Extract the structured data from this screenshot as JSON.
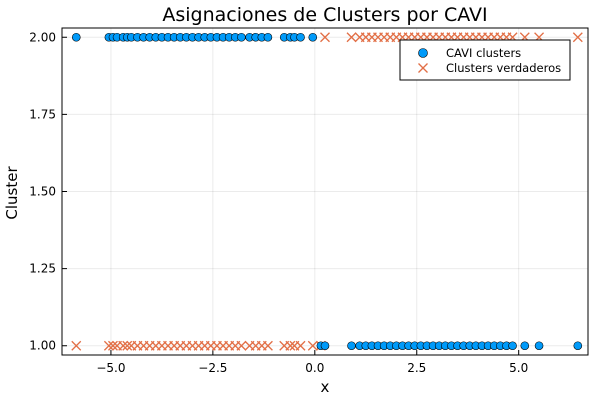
{
  "chart_data": {
    "type": "scatter",
    "title": "Asignaciones de Clusters por CAVI",
    "xlabel": "x",
    "ylabel": "Cluster",
    "xlim": [
      -6.2,
      6.7
    ],
    "ylim": [
      0.97,
      2.03
    ],
    "xticks": [
      -5.0,
      -2.5,
      0.0,
      2.5,
      5.0
    ],
    "xtick_labels": [
      "−5.0",
      "−2.5",
      "0.0",
      "2.5",
      "5.0"
    ],
    "yticks": [
      1.0,
      1.25,
      1.5,
      1.75,
      2.0
    ],
    "ytick_labels": [
      "1.00",
      "1.25",
      "1.50",
      "1.75",
      "2.00"
    ],
    "grid": true,
    "legend_position": "top-right",
    "colors": {
      "cavi": "#009AF9",
      "true": "#E26F46"
    },
    "series": [
      {
        "name": "CAVI clusters",
        "marker": "circle",
        "points": [
          {
            "x": -5.85,
            "y": 2
          },
          {
            "x": -5.05,
            "y": 2
          },
          {
            "x": -4.95,
            "y": 2
          },
          {
            "x": -4.85,
            "y": 2
          },
          {
            "x": -4.7,
            "y": 2
          },
          {
            "x": -4.6,
            "y": 2
          },
          {
            "x": -4.5,
            "y": 2
          },
          {
            "x": -4.35,
            "y": 2
          },
          {
            "x": -4.2,
            "y": 2
          },
          {
            "x": -4.05,
            "y": 2
          },
          {
            "x": -3.9,
            "y": 2
          },
          {
            "x": -3.75,
            "y": 2
          },
          {
            "x": -3.6,
            "y": 2
          },
          {
            "x": -3.45,
            "y": 2
          },
          {
            "x": -3.3,
            "y": 2
          },
          {
            "x": -3.15,
            "y": 2
          },
          {
            "x": -3.0,
            "y": 2
          },
          {
            "x": -2.85,
            "y": 2
          },
          {
            "x": -2.7,
            "y": 2
          },
          {
            "x": -2.55,
            "y": 2
          },
          {
            "x": -2.4,
            "y": 2
          },
          {
            "x": -2.25,
            "y": 2
          },
          {
            "x": -2.1,
            "y": 2
          },
          {
            "x": -1.95,
            "y": 2
          },
          {
            "x": -1.8,
            "y": 2
          },
          {
            "x": -1.6,
            "y": 2
          },
          {
            "x": -1.45,
            "y": 2
          },
          {
            "x": -1.3,
            "y": 2
          },
          {
            "x": -1.15,
            "y": 2
          },
          {
            "x": -0.75,
            "y": 2
          },
          {
            "x": -0.6,
            "y": 2
          },
          {
            "x": -0.5,
            "y": 2
          },
          {
            "x": -0.35,
            "y": 2
          },
          {
            "x": -0.05,
            "y": 2
          },
          {
            "x": 0.15,
            "y": 1
          },
          {
            "x": 0.25,
            "y": 1
          },
          {
            "x": 0.9,
            "y": 1
          },
          {
            "x": 1.1,
            "y": 1
          },
          {
            "x": 1.25,
            "y": 1
          },
          {
            "x": 1.4,
            "y": 1
          },
          {
            "x": 1.55,
            "y": 1
          },
          {
            "x": 1.7,
            "y": 1
          },
          {
            "x": 1.85,
            "y": 1
          },
          {
            "x": 2.0,
            "y": 1
          },
          {
            "x": 2.15,
            "y": 1
          },
          {
            "x": 2.3,
            "y": 1
          },
          {
            "x": 2.45,
            "y": 1
          },
          {
            "x": 2.6,
            "y": 1
          },
          {
            "x": 2.75,
            "y": 1
          },
          {
            "x": 2.9,
            "y": 1
          },
          {
            "x": 3.05,
            "y": 1
          },
          {
            "x": 3.2,
            "y": 1
          },
          {
            "x": 3.35,
            "y": 1
          },
          {
            "x": 3.5,
            "y": 1
          },
          {
            "x": 3.65,
            "y": 1
          },
          {
            "x": 3.8,
            "y": 1
          },
          {
            "x": 3.95,
            "y": 1
          },
          {
            "x": 4.1,
            "y": 1
          },
          {
            "x": 4.25,
            "y": 1
          },
          {
            "x": 4.4,
            "y": 1
          },
          {
            "x": 4.55,
            "y": 1
          },
          {
            "x": 4.7,
            "y": 1
          },
          {
            "x": 4.85,
            "y": 1
          },
          {
            "x": 5.15,
            "y": 1
          },
          {
            "x": 5.5,
            "y": 1
          },
          {
            "x": 6.45,
            "y": 1
          }
        ]
      },
      {
        "name": "Clusters verdaderos",
        "marker": "x",
        "points": [
          {
            "x": -5.85,
            "y": 1
          },
          {
            "x": -5.05,
            "y": 1
          },
          {
            "x": -4.95,
            "y": 1
          },
          {
            "x": -4.85,
            "y": 1
          },
          {
            "x": -4.7,
            "y": 1
          },
          {
            "x": -4.6,
            "y": 1
          },
          {
            "x": -4.5,
            "y": 1
          },
          {
            "x": -4.35,
            "y": 1
          },
          {
            "x": -4.2,
            "y": 1
          },
          {
            "x": -4.05,
            "y": 1
          },
          {
            "x": -3.9,
            "y": 1
          },
          {
            "x": -3.75,
            "y": 1
          },
          {
            "x": -3.6,
            "y": 1
          },
          {
            "x": -3.45,
            "y": 1
          },
          {
            "x": -3.3,
            "y": 1
          },
          {
            "x": -3.15,
            "y": 1
          },
          {
            "x": -3.0,
            "y": 1
          },
          {
            "x": -2.85,
            "y": 1
          },
          {
            "x": -2.7,
            "y": 1
          },
          {
            "x": -2.55,
            "y": 1
          },
          {
            "x": -2.4,
            "y": 1
          },
          {
            "x": -2.25,
            "y": 1
          },
          {
            "x": -2.1,
            "y": 1
          },
          {
            "x": -1.95,
            "y": 1
          },
          {
            "x": -1.8,
            "y": 1
          },
          {
            "x": -1.6,
            "y": 1
          },
          {
            "x": -1.45,
            "y": 1
          },
          {
            "x": -1.3,
            "y": 1
          },
          {
            "x": -1.15,
            "y": 1
          },
          {
            "x": -0.75,
            "y": 1
          },
          {
            "x": -0.6,
            "y": 1
          },
          {
            "x": -0.5,
            "y": 1
          },
          {
            "x": -0.35,
            "y": 1
          },
          {
            "x": -0.05,
            "y": 1
          },
          {
            "x": 0.15,
            "y": 1
          },
          {
            "x": 0.25,
            "y": 2
          },
          {
            "x": 0.9,
            "y": 2
          },
          {
            "x": 1.1,
            "y": 2
          },
          {
            "x": 1.25,
            "y": 2
          },
          {
            "x": 1.4,
            "y": 2
          },
          {
            "x": 1.55,
            "y": 2
          },
          {
            "x": 1.7,
            "y": 2
          },
          {
            "x": 1.85,
            "y": 2
          },
          {
            "x": 2.0,
            "y": 2
          },
          {
            "x": 2.15,
            "y": 2
          },
          {
            "x": 2.3,
            "y": 2
          },
          {
            "x": 2.45,
            "y": 2
          },
          {
            "x": 2.6,
            "y": 2
          },
          {
            "x": 2.75,
            "y": 2
          },
          {
            "x": 2.9,
            "y": 2
          },
          {
            "x": 3.05,
            "y": 2
          },
          {
            "x": 3.2,
            "y": 2
          },
          {
            "x": 3.35,
            "y": 2
          },
          {
            "x": 3.5,
            "y": 2
          },
          {
            "x": 3.65,
            "y": 2
          },
          {
            "x": 3.8,
            "y": 2
          },
          {
            "x": 3.95,
            "y": 2
          },
          {
            "x": 4.1,
            "y": 2
          },
          {
            "x": 4.25,
            "y": 2
          },
          {
            "x": 4.4,
            "y": 2
          },
          {
            "x": 4.55,
            "y": 2
          },
          {
            "x": 4.7,
            "y": 2
          },
          {
            "x": 4.85,
            "y": 2
          },
          {
            "x": 5.15,
            "y": 2
          },
          {
            "x": 5.5,
            "y": 2
          },
          {
            "x": 6.45,
            "y": 2
          }
        ]
      }
    ]
  }
}
